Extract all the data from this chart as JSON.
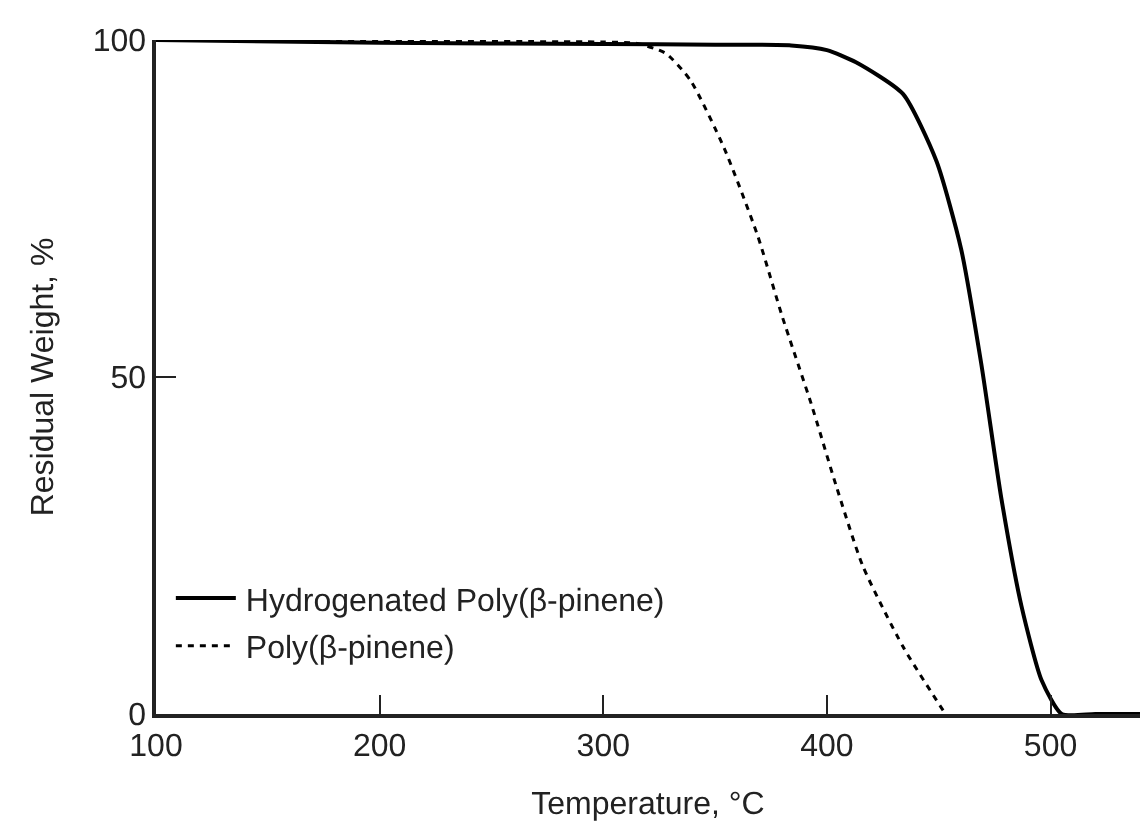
{
  "chart_data": {
    "type": "line",
    "xlabel": "Temperature, °C",
    "ylabel": "Residual Weight, %",
    "xlim": [
      100,
      540
    ],
    "ylim": [
      0,
      100
    ],
    "xticks": [
      100,
      200,
      300,
      400,
      500
    ],
    "yticks": [
      0,
      50,
      100
    ],
    "legend": "bottom left",
    "marker": "none",
    "series": [
      {
        "name": "Hydrogenated Poly(β-pinene)",
        "color": "#000000",
        "line_style": "solid",
        "x": [
          100,
          200,
          300,
          350,
          384,
          400,
          413,
          434,
          449,
          460,
          469,
          478,
          487,
          496,
          505,
          520,
          540
        ],
        "values": [
          100,
          99.6,
          99.4,
          99.3,
          99.2,
          98.5,
          96.7,
          92,
          82,
          69,
          52,
          32,
          16,
          5,
          0,
          0,
          0
        ]
      },
      {
        "name": "Poly(β-pinene)",
        "color": "#000000",
        "line_style": "dotted",
        "x": [
          100,
          200,
          300,
          315,
          328,
          339,
          354,
          369,
          380,
          393,
          404,
          416,
          434,
          453
        ],
        "values": [
          100,
          99.8,
          99.7,
          99.5,
          98,
          94,
          84,
          71,
          59,
          46,
          34,
          22,
          10,
          0
        ]
      }
    ]
  }
}
